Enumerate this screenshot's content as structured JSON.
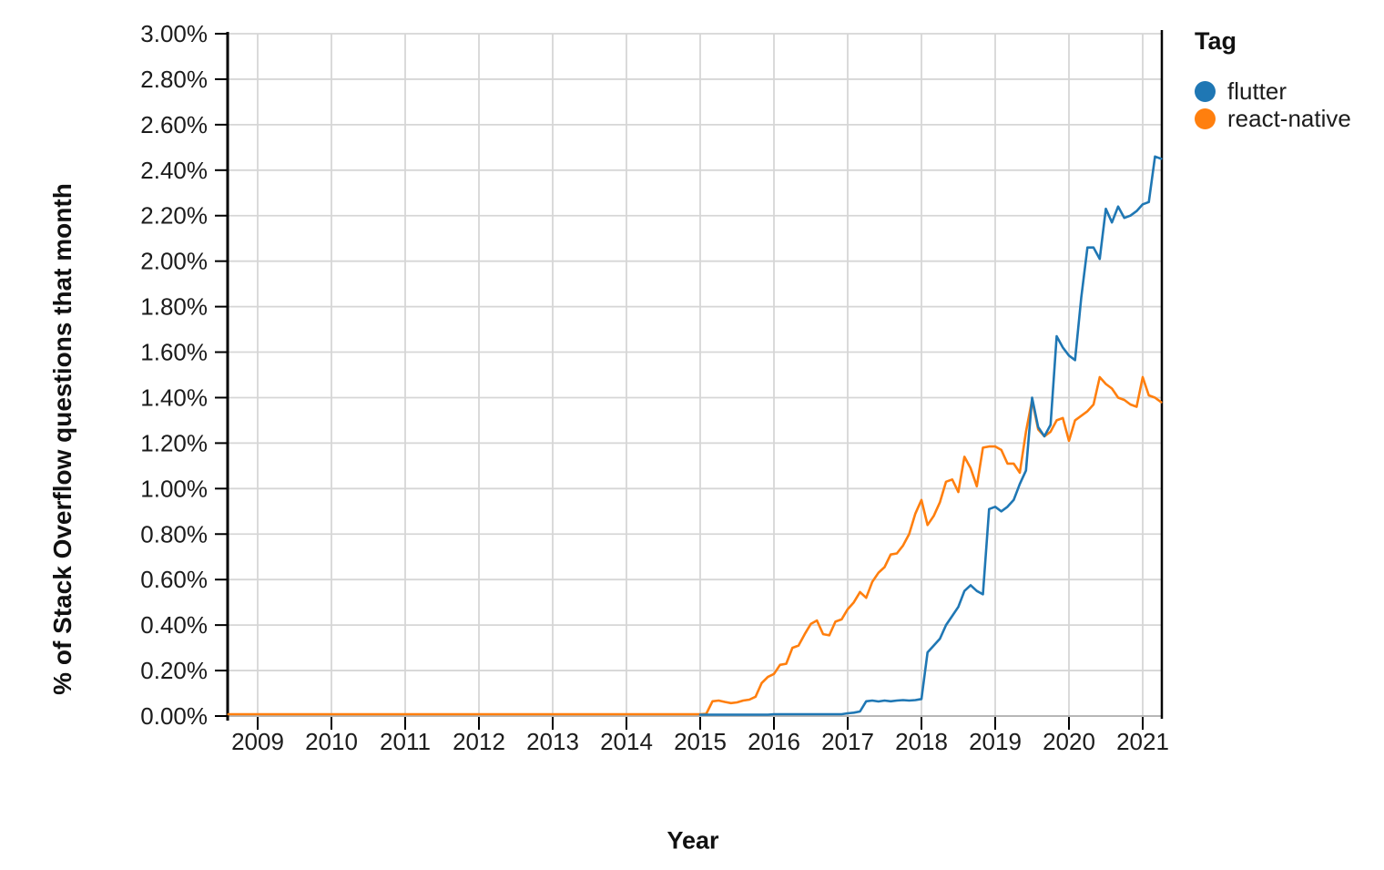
{
  "chart_data": {
    "type": "line",
    "title": "",
    "x_axis": {
      "title": "Year",
      "tick_labels": [
        "2009",
        "2010",
        "2011",
        "2012",
        "2013",
        "2014",
        "2015",
        "2016",
        "2017",
        "2018",
        "2019",
        "2020",
        "2021"
      ],
      "tick_years": [
        2009,
        2010,
        2011,
        2012,
        2013,
        2014,
        2015,
        2016,
        2017,
        2018,
        2019,
        2020,
        2021
      ],
      "min": 2008.583,
      "max": 2021.333
    },
    "y_axis": {
      "title": "% of Stack Overflow questions that month",
      "tick_labels": [
        "0.00%",
        "0.20%",
        "0.40%",
        "0.60%",
        "0.80%",
        "1.00%",
        "1.20%",
        "1.40%",
        "1.60%",
        "1.80%",
        "2.00%",
        "2.20%",
        "2.40%",
        "2.60%",
        "2.80%",
        "3.00%"
      ],
      "tick_values": [
        0,
        0.2,
        0.4,
        0.6,
        0.8,
        1.0,
        1.2,
        1.4,
        1.6,
        1.8,
        2.0,
        2.2,
        2.4,
        2.6,
        2.8,
        3.0
      ],
      "min": 0,
      "max": 3,
      "unit": "%"
    },
    "grid": true,
    "legend": {
      "title": "Tag",
      "position": "top-right",
      "items": [
        {
          "label": "flutter",
          "color": "#1f77b4"
        },
        {
          "label": "react-native",
          "color": "#ff7f0e"
        }
      ]
    },
    "series": [
      {
        "name": "react-native",
        "color": "#ff7f0e",
        "start_month": "2008-08",
        "interval": "month",
        "values": [
          0.008,
          0.008,
          0.008,
          0.008,
          0.008,
          0.008,
          0.008,
          0.008,
          0.008,
          0.008,
          0.008,
          0.008,
          0.008,
          0.008,
          0.008,
          0.008,
          0.008,
          0.008,
          0.008,
          0.008,
          0.008,
          0.008,
          0.008,
          0.008,
          0.008,
          0.008,
          0.008,
          0.008,
          0.008,
          0.008,
          0.008,
          0.008,
          0.008,
          0.008,
          0.008,
          0.008,
          0.008,
          0.008,
          0.008,
          0.008,
          0.008,
          0.008,
          0.008,
          0.008,
          0.008,
          0.008,
          0.008,
          0.008,
          0.008,
          0.008,
          0.008,
          0.008,
          0.008,
          0.008,
          0.008,
          0.008,
          0.008,
          0.008,
          0.008,
          0.008,
          0.008,
          0.008,
          0.008,
          0.008,
          0.008,
          0.008,
          0.008,
          0.008,
          0.008,
          0.008,
          0.008,
          0.008,
          0.008,
          0.008,
          0.008,
          0.008,
          0.008,
          0.008,
          0.01,
          0.065,
          0.068,
          0.062,
          0.057,
          0.06,
          0.068,
          0.072,
          0.085,
          0.145,
          0.172,
          0.185,
          0.225,
          0.23,
          0.3,
          0.31,
          0.36,
          0.405,
          0.42,
          0.36,
          0.355,
          0.415,
          0.425,
          0.47,
          0.5,
          0.545,
          0.52,
          0.59,
          0.63,
          0.655,
          0.71,
          0.715,
          0.75,
          0.8,
          0.89,
          0.95,
          0.84,
          0.88,
          0.94,
          1.03,
          1.04,
          0.985,
          1.14,
          1.09,
          1.01,
          1.18,
          1.185,
          1.185,
          1.17,
          1.11,
          1.11,
          1.07,
          1.25,
          1.39,
          1.26,
          1.23,
          1.25,
          1.3,
          1.31,
          1.21,
          1.3,
          1.32,
          1.34,
          1.37,
          1.49,
          1.46,
          1.44,
          1.4,
          1.39,
          1.37,
          1.36,
          1.49,
          1.41,
          1.4,
          1.38
        ]
      },
      {
        "name": "flutter",
        "color": "#1f77b4",
        "start_month": "2015-01",
        "interval": "month",
        "values": [
          0.006,
          0.006,
          0.006,
          0.006,
          0.006,
          0.006,
          0.006,
          0.006,
          0.006,
          0.006,
          0.006,
          0.006,
          0.008,
          0.008,
          0.008,
          0.008,
          0.008,
          0.008,
          0.008,
          0.008,
          0.008,
          0.008,
          0.008,
          0.008,
          0.012,
          0.015,
          0.02,
          0.065,
          0.068,
          0.064,
          0.068,
          0.065,
          0.068,
          0.07,
          0.068,
          0.07,
          0.075,
          0.28,
          0.31,
          0.34,
          0.4,
          0.44,
          0.48,
          0.55,
          0.575,
          0.55,
          0.535,
          0.91,
          0.92,
          0.9,
          0.92,
          0.95,
          1.02,
          1.08,
          1.4,
          1.27,
          1.23,
          1.28,
          1.67,
          1.62,
          1.585,
          1.565,
          1.84,
          2.06,
          2.06,
          2.01,
          2.23,
          2.17,
          2.24,
          2.19,
          2.2,
          2.22,
          2.25,
          2.26,
          2.46,
          2.45
        ]
      }
    ],
    "colors": {
      "grid": "#d6d6d6",
      "baseline": "#adadad",
      "axis": "#000000",
      "text": "#1c1c1c",
      "background": "#ffffff"
    }
  }
}
